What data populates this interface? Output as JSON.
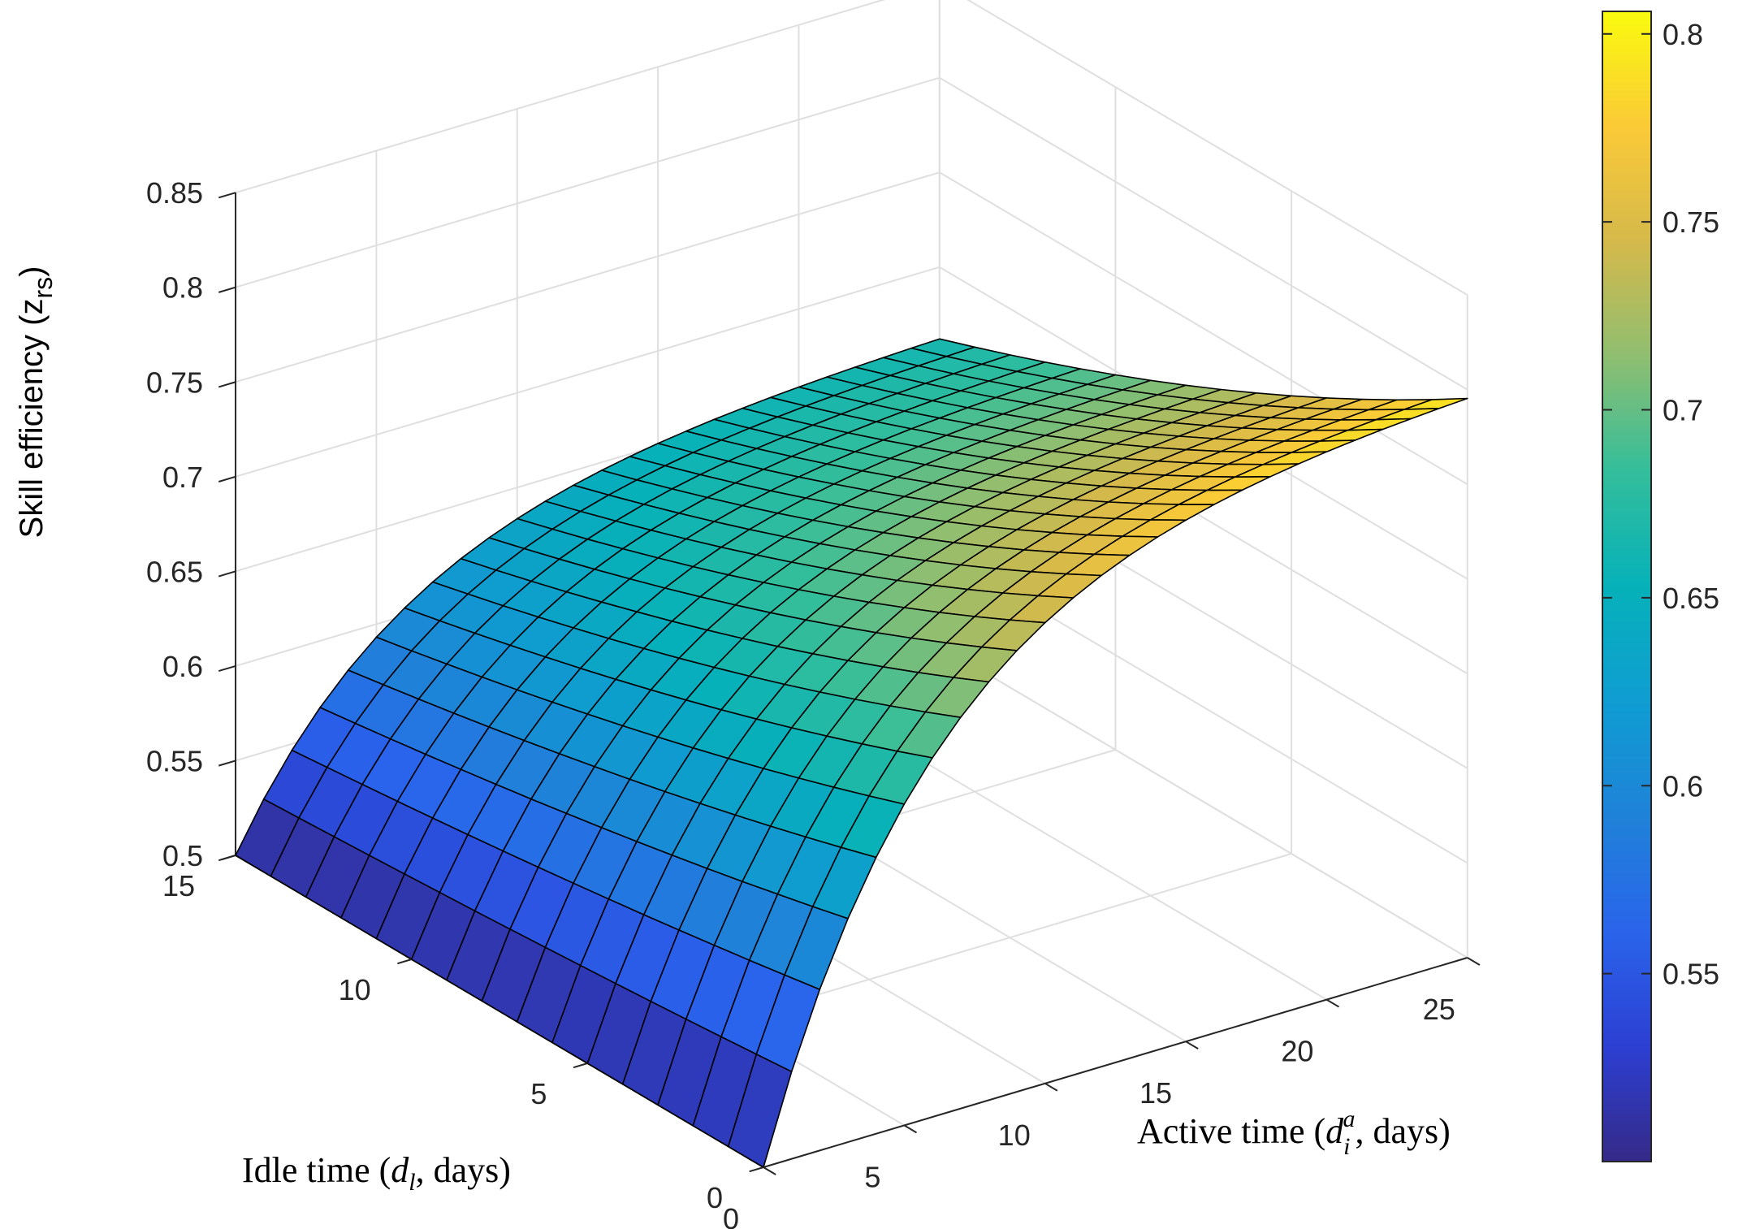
{
  "chart_data": {
    "type": "surface",
    "z_function": "z = 0.5 + 0.3 * (1 - exp(-a / 6)) * exp(-l / 25)",
    "axes": {
      "x": {
        "label_prefix": "Active time (",
        "label_symbol": "d",
        "label_sub": "i",
        "label_sup": "a",
        "label_suffix": ", days)",
        "range": [
          0,
          25
        ],
        "ticks": [
          "0",
          "5",
          "10",
          "15",
          "20",
          "25"
        ]
      },
      "y": {
        "label_prefix": "Idle time (",
        "label_symbol": "d",
        "label_sub": "l",
        "label_suffix": ", days)",
        "range": [
          0,
          15
        ],
        "ticks": [
          "0",
          "5",
          "10",
          "15"
        ]
      },
      "z": {
        "label_main": "Skill efficiency (z",
        "label_sub": "rs",
        "label_close": ")",
        "range": [
          0.5,
          0.85
        ],
        "ticks": [
          "0.5",
          "0.55",
          "0.6",
          "0.65",
          "0.7",
          "0.75",
          "0.8",
          "0.85"
        ]
      }
    },
    "grid": true,
    "colormap": "parula",
    "colorbar": {
      "range": [
        0.5,
        0.806
      ],
      "ticks": [
        "0.55",
        "0.6",
        "0.65",
        "0.7",
        "0.75",
        "0.8"
      ]
    }
  }
}
